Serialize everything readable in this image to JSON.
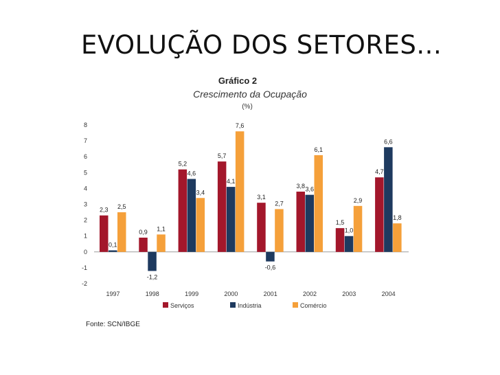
{
  "slide": {
    "title": "EVOLUÇÃO DOS SETORES..."
  },
  "chart_data": {
    "type": "bar",
    "title": "Gráfico 2",
    "subtitle": "Crescimento da Ocupação",
    "unit": "(%)",
    "categories": [
      "1997",
      "1998",
      "1999",
      "2000",
      "2001",
      "2002",
      "2003",
      "2004"
    ],
    "series": [
      {
        "name": "Serviços",
        "color": "#a3172b",
        "values": [
          2.3,
          0.9,
          5.2,
          5.7,
          3.1,
          3.8,
          1.5,
          4.7
        ],
        "labels": [
          "2,3",
          "0,9",
          "5,2",
          "5,7",
          "3,1",
          "3,8",
          "1,5",
          "4,7"
        ]
      },
      {
        "name": "Indústria",
        "color": "#1e3a5f",
        "values": [
          0.1,
          -1.2,
          4.6,
          4.1,
          -0.6,
          3.6,
          1.0,
          6.6
        ],
        "labels": [
          "0,1",
          "-1,2",
          "4,6",
          "4,1",
          "-0,6",
          "3,6",
          "1,0",
          "6,6"
        ]
      },
      {
        "name": "Comércio",
        "color": "#f5a03a",
        "values": [
          2.5,
          1.1,
          3.4,
          7.6,
          2.7,
          6.1,
          2.9,
          1.8
        ],
        "labels": [
          "2,5",
          "1,1",
          "3,4",
          "7,6",
          "2,7",
          "6,1",
          "2,9",
          "1,8"
        ]
      }
    ],
    "ylim": [
      -2,
      8
    ],
    "yticks": [
      "-2",
      "-1",
      "0",
      "1",
      "2",
      "3",
      "4",
      "5",
      "6",
      "7",
      "8"
    ],
    "legend_position": "bottom",
    "grid": false,
    "source": "Fonte: SCN/IBGE"
  }
}
